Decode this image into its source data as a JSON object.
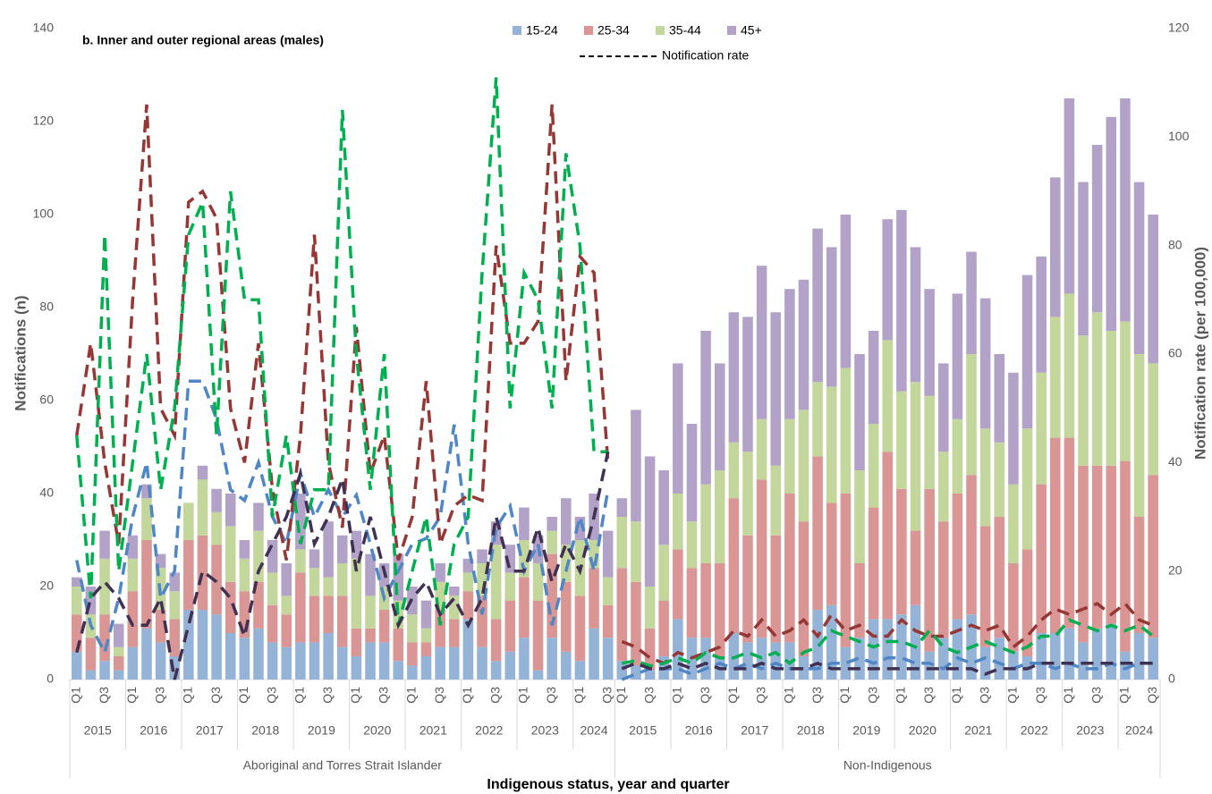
{
  "chart_data": {
    "type": "bar",
    "title": "b. Inner and outer regional areas (males)",
    "ylabel": "Notifications (n)",
    "y2label": "Notification rate (per 100,000)",
    "xlabel": "Indigenous status, year and quarter",
    "rate_legend": "Notification rate",
    "ylim": [
      0,
      140
    ],
    "yticks": [
      0,
      20,
      40,
      60,
      80,
      100,
      120,
      140
    ],
    "y2lim": [
      0,
      120
    ],
    "y2ticks": [
      0,
      20,
      40,
      60,
      80,
      100,
      120
    ],
    "grid": false,
    "groups": [
      {
        "label": "Aboriginal and Torres Strait Islander",
        "years": [
          "2015",
          "2016",
          "2017",
          "2018",
          "2019",
          "2020",
          "2021",
          "2022",
          "2023",
          "2024"
        ]
      },
      {
        "label": "Non-Indigenous",
        "years": [
          "2015",
          "2016",
          "2017",
          "2018",
          "2019",
          "2020",
          "2021",
          "2022",
          "2023",
          "2024"
        ]
      }
    ],
    "categories": [
      "Q1",
      null,
      "Q3",
      null,
      "Q1",
      null,
      "Q3",
      null,
      "Q1",
      null,
      "Q3",
      null,
      "Q1",
      null,
      "Q3",
      null,
      "Q1",
      null,
      "Q3",
      null,
      "Q1",
      null,
      "Q3",
      null,
      "Q1",
      null,
      "Q3",
      null,
      "Q1",
      null,
      "Q3",
      null,
      "Q1",
      null,
      "Q3",
      null,
      "Q1",
      null,
      "Q3",
      "Q1",
      null,
      "Q3",
      null,
      "Q1",
      null,
      "Q3",
      null,
      "Q1",
      null,
      "Q3",
      null,
      "Q1",
      null,
      "Q3",
      null,
      "Q1",
      null,
      "Q3",
      null,
      "Q1",
      null,
      "Q3",
      null,
      "Q1",
      null,
      "Q3",
      null,
      "Q1",
      null,
      "Q3",
      null,
      "Q1",
      null,
      "Q3",
      null,
      "Q1",
      null,
      "Q3"
    ],
    "series": [
      {
        "name": "15-24",
        "color": "#95b3d7",
        "values": [
          6,
          2,
          4,
          2,
          7,
          11,
          8,
          5,
          15,
          15,
          14,
          10,
          9,
          11,
          8,
          7,
          8,
          8,
          10,
          7,
          5,
          8,
          8,
          4,
          3,
          5,
          7,
          7,
          13,
          7,
          4,
          6,
          9,
          2,
          9,
          6,
          4,
          11,
          9,
          4,
          3,
          2,
          5,
          13,
          9,
          9,
          5,
          10,
          8,
          9,
          8,
          8,
          5,
          15,
          16,
          7,
          9,
          13,
          13,
          14,
          16,
          6,
          9,
          13,
          14,
          7,
          9,
          6,
          5,
          10,
          10,
          11,
          8,
          11,
          12,
          6,
          10,
          9
        ]
      },
      {
        "name": "25-34",
        "color": "#d99694",
        "values": [
          8,
          7,
          10,
          3,
          12,
          19,
          7,
          8,
          15,
          16,
          15,
          11,
          10,
          10,
          8,
          7,
          15,
          10,
          8,
          11,
          6,
          3,
          7,
          7,
          5,
          3,
          8,
          6,
          6,
          11,
          9,
          11,
          13,
          15,
          18,
          15,
          14,
          13,
          7,
          20,
          18,
          9,
          12,
          15,
          15,
          16,
          20,
          29,
          23,
          34,
          23,
          32,
          29,
          33,
          22,
          33,
          16,
          24,
          36,
          27,
          16,
          35,
          25,
          27,
          30,
          26,
          26,
          19,
          23,
          32,
          42,
          41,
          38,
          35,
          34,
          41,
          25,
          35
        ]
      },
      {
        "name": "35-44",
        "color": "#c3d69b",
        "values": [
          6,
          5,
          12,
          2,
          7,
          9,
          9,
          6,
          8,
          12,
          7,
          12,
          7,
          11,
          7,
          4,
          5,
          6,
          4,
          7,
          15,
          7,
          5,
          6,
          6,
          3,
          6,
          5,
          4,
          7,
          16,
          6,
          8,
          8,
          5,
          8,
          12,
          6,
          6,
          11,
          13,
          9,
          12,
          12,
          10,
          17,
          20,
          12,
          18,
          13,
          15,
          16,
          24,
          16,
          25,
          27,
          20,
          18,
          24,
          21,
          32,
          20,
          15,
          16,
          26,
          21,
          16,
          17,
          26,
          24,
          26,
          31,
          28,
          33,
          29,
          30,
          35,
          24
        ]
      },
      {
        "name": "45+",
        "color": "#b3a2c7",
        "values": [
          2,
          6,
          6,
          5,
          5,
          3,
          3,
          4,
          0,
          3,
          5,
          7,
          4,
          6,
          7,
          7,
          12,
          4,
          12,
          6,
          6,
          9,
          5,
          10,
          6,
          6,
          4,
          2,
          3,
          3,
          5,
          6,
          7,
          6,
          3,
          10,
          5,
          10,
          10,
          4,
          24,
          28,
          16,
          28,
          21,
          33,
          23,
          28,
          29,
          33,
          33,
          28,
          28,
          33,
          30,
          33,
          25,
          20,
          26,
          39,
          29,
          23,
          19,
          27,
          22,
          28,
          19,
          24,
          33,
          25,
          30,
          42,
          33,
          36,
          46,
          48,
          37,
          32
        ]
      }
    ],
    "rate_series": [
      {
        "color": "#4f86c6",
        "axis": "y2",
        "values": [
          22,
          10,
          5,
          15,
          30,
          40,
          15,
          20,
          55,
          55,
          48,
          35,
          33,
          40,
          30,
          25,
          38,
          30,
          35,
          30,
          34,
          25,
          15,
          20,
          25,
          26,
          30,
          47,
          25,
          12,
          28,
          32,
          20,
          25,
          10,
          20,
          30,
          20,
          35,
          0,
          1,
          2,
          2,
          2,
          1,
          2,
          3,
          2,
          3,
          2,
          3,
          2,
          2,
          2,
          3,
          3,
          4,
          3,
          4,
          4,
          3,
          3,
          2,
          4,
          3,
          4,
          3,
          2,
          3,
          3,
          2,
          3,
          2,
          2,
          3,
          2,
          3,
          3
        ]
      },
      {
        "color": "#953735",
        "axis": "y2",
        "values": [
          45,
          62,
          40,
          25,
          70,
          106,
          50,
          45,
          88,
          90,
          85,
          50,
          40,
          62,
          35,
          22,
          45,
          82,
          40,
          28,
          65,
          38,
          45,
          22,
          30,
          55,
          25,
          32,
          34,
          33,
          80,
          62,
          62,
          66,
          106,
          55,
          78,
          75,
          40,
          7,
          6,
          4,
          3,
          5,
          4,
          5,
          6,
          9,
          8,
          11,
          8,
          9,
          11,
          8,
          12,
          9,
          10,
          8,
          8,
          11,
          9,
          8,
          8,
          9,
          10,
          9,
          10,
          6,
          8,
          11,
          13,
          12,
          13,
          14,
          12,
          14,
          11,
          10
        ]
      },
      {
        "color": "#00b050",
        "axis": "y2",
        "values": [
          45,
          15,
          82,
          20,
          40,
          60,
          35,
          50,
          82,
          88,
          45,
          90,
          70,
          70,
          30,
          45,
          25,
          35,
          35,
          105,
          60,
          35,
          60,
          10,
          20,
          30,
          10,
          25,
          30,
          75,
          111,
          50,
          75,
          70,
          50,
          97,
          80,
          42,
          42,
          3,
          3.5,
          2.5,
          3,
          4,
          3,
          5,
          4,
          4,
          5,
          4,
          5,
          3,
          5,
          6,
          9,
          8,
          7,
          6,
          7,
          7,
          6,
          9,
          6,
          5,
          6,
          7,
          6,
          5,
          6,
          8,
          8,
          11,
          10,
          9,
          10,
          9,
          10,
          8
        ]
      },
      {
        "color": "#403152",
        "axis": "y2",
        "values": [
          5,
          15,
          18,
          15,
          10,
          10,
          15,
          0,
          10,
          20,
          18,
          15,
          8,
          20,
          25,
          30,
          38,
          25,
          30,
          37,
          20,
          30,
          20,
          10,
          15,
          18,
          12,
          15,
          10,
          15,
          30,
          20,
          20,
          28,
          18,
          25,
          20,
          30,
          42,
          2,
          3,
          2,
          2,
          3,
          2,
          3,
          2,
          2,
          2,
          3,
          2,
          2,
          2,
          3,
          2,
          2,
          2,
          2,
          2,
          2,
          2,
          2,
          2,
          2,
          2,
          1,
          2,
          2,
          2,
          3,
          3,
          3,
          3,
          3,
          3,
          3,
          3,
          3
        ]
      }
    ]
  }
}
